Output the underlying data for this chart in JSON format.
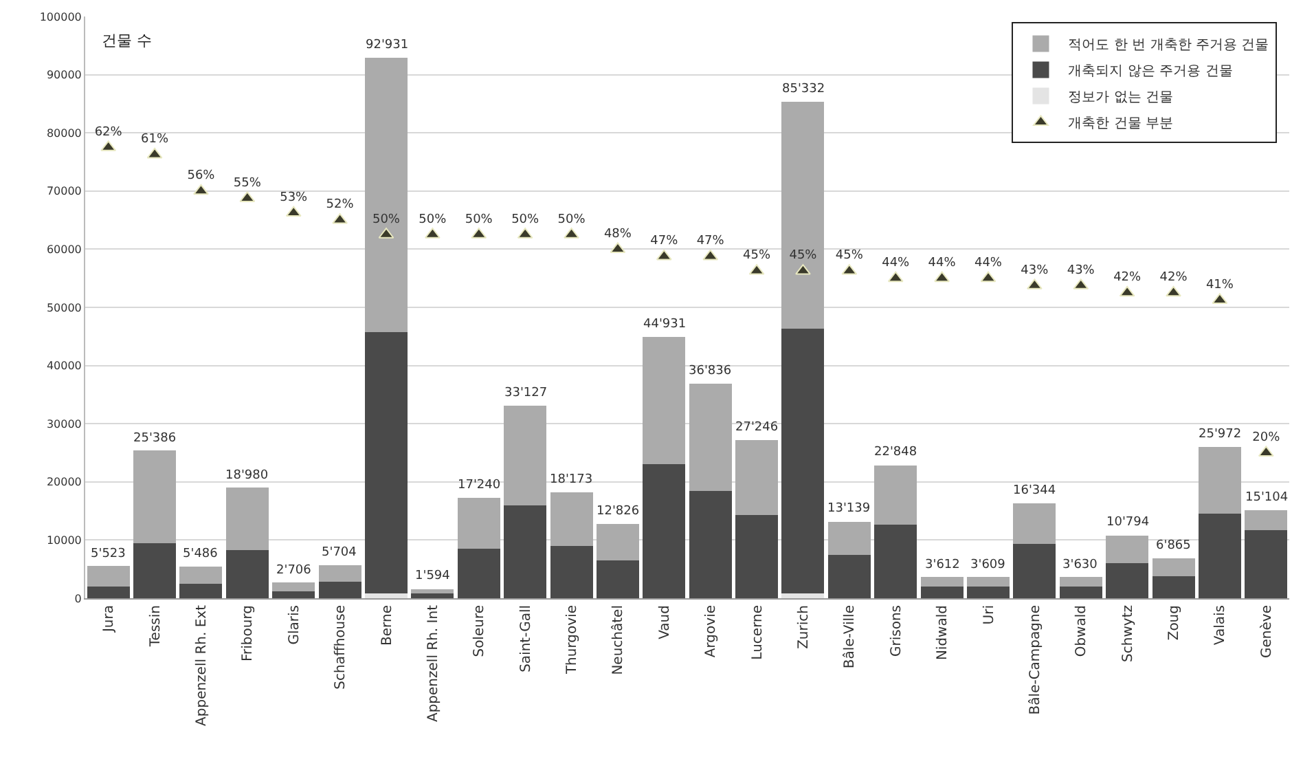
{
  "chart_data": {
    "type": "bar",
    "title": "건물 수",
    "stacked": true,
    "categories": [
      "Jura",
      "Tessin",
      "Appenzell Rh. Ext",
      "Fribourg",
      "Glaris",
      "Schaffhouse",
      "Berne",
      "Appenzell Rh. Int",
      "Soleure",
      "Saint-Gall",
      "Thurgovie",
      "Neuchâtel",
      "Vaud",
      "Argovie",
      "Lucerne",
      "Zurich",
      "Bâle-Ville",
      "Grisons",
      "Nidwald",
      "Uri",
      "Bâle-Campagne",
      "Obwald",
      "Schwytz",
      "Zoug",
      "Valais",
      "Genève"
    ],
    "series": [
      {
        "name": "정보가 없는 건물",
        "color": "#e4e4e4",
        "values": [
          0,
          0,
          0,
          0,
          0,
          0,
          800,
          0,
          0,
          0,
          0,
          0,
          0,
          0,
          0,
          800,
          0,
          0,
          0,
          0,
          0,
          0,
          0,
          0,
          0,
          0
        ]
      },
      {
        "name": "개축되지 않은 주거용 건물",
        "color": "#4a4a4a",
        "values": [
          2000,
          9500,
          2500,
          8300,
          1200,
          2800,
          45000,
          800,
          8500,
          16000,
          9000,
          6500,
          23000,
          18500,
          14300,
          45500,
          7400,
          12600,
          2000,
          2000,
          9300,
          2000,
          6000,
          3800,
          14500,
          11700
        ]
      },
      {
        "name": "적어도 한 번 개축한 주거용 건물",
        "color": "#ababab",
        "values": [
          3523,
          15886,
          2986,
          10680,
          1506,
          2904,
          47131,
          794,
          8740,
          17127,
          9173,
          6326,
          21931,
          18336,
          12946,
          39032,
          5739,
          10248,
          1612,
          1609,
          7044,
          1630,
          4794,
          3065,
          11472,
          3404
        ]
      },
      {
        "name": "개축한 건물 부분",
        "type": "scatter",
        "axis": "y2",
        "marker": "triangle",
        "color": "#3a3a2a",
        "values": [
          62,
          61,
          56,
          55,
          53,
          52,
          50,
          50,
          50,
          50,
          50,
          48,
          47,
          47,
          45,
          45,
          45,
          44,
          44,
          44,
          43,
          43,
          42,
          42,
          41,
          20
        ],
        "value_labels": [
          "62%",
          "61%",
          "56%",
          "55%",
          "53%",
          "52%",
          "50%",
          "50%",
          "50%",
          "50%",
          "50%",
          "48%",
          "47%",
          "47%",
          "45%",
          "45%",
          "45%",
          "44%",
          "44%",
          "44%",
          "43%",
          "43%",
          "42%",
          "42%",
          "41%",
          "20%"
        ]
      }
    ],
    "totals": [
      "5'523",
      "25'386",
      "5'486",
      "18'980",
      "2'706",
      "5'704",
      "92'931",
      "1'594",
      "17'240",
      "33'127",
      "18'173",
      "12'826",
      "44'931",
      "36'836",
      "27'246",
      "85'332",
      "13'139",
      "22'848",
      "3'612",
      "3'609",
      "16'344",
      "3'630",
      "10'794",
      "6'865",
      "25'972",
      "15'104"
    ],
    "ylim": [
      0,
      100000
    ],
    "yticks": [
      0,
      10000,
      20000,
      30000,
      40000,
      50000,
      60000,
      70000,
      80000,
      90000,
      100000
    ],
    "y2lim": [
      0,
      80
    ],
    "grid": "y",
    "legend": "top right"
  }
}
